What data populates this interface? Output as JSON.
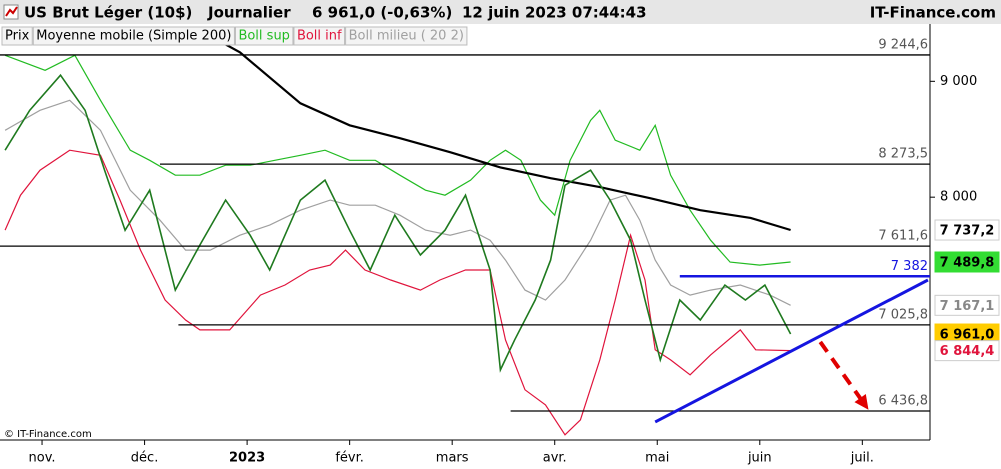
{
  "chart_data": {
    "type": "line",
    "title": "US Brut Léger (10$)",
    "period": "Journalier",
    "price_change": "6 961,0 (-0,63%)",
    "date_time": "12 juin 2023 07:44:43",
    "source": "IT-Finance.com",
    "copyright": "© IT-Finance.com",
    "log_scale": true,
    "ylim": [
      6250,
      9540
    ],
    "yticks": [
      {
        "value": 9000,
        "label": "9 000"
      },
      {
        "value": 8000,
        "label": "8 000"
      }
    ],
    "xlim": [
      -0.41,
      8.66
    ],
    "xticks": [
      {
        "value": 0,
        "label": "nov."
      },
      {
        "value": 1,
        "label": "déc."
      },
      {
        "value": 2,
        "label": "2023"
      },
      {
        "value": 3,
        "label": "févr."
      },
      {
        "value": 4,
        "label": "mars"
      },
      {
        "value": 5,
        "label": "avr."
      },
      {
        "value": 6,
        "label": "mai"
      },
      {
        "value": 7,
        "label": "juin"
      },
      {
        "value": 8,
        "label": "juil."
      }
    ],
    "series": [
      {
        "name": "Prix",
        "color": "#1f7a1f",
        "x": [
          -0.36,
          -0.12,
          0.18,
          0.42,
          0.61,
          0.81,
          1.05,
          1.3,
          1.54,
          1.79,
          2.03,
          2.22,
          2.52,
          2.76,
          3.0,
          3.2,
          3.44,
          3.69,
          3.93,
          4.13,
          4.37,
          4.47,
          4.61,
          4.81,
          4.96,
          5.1,
          5.35,
          5.54,
          5.74,
          5.88,
          6.03,
          6.22,
          6.42,
          6.66,
          6.86,
          7.05,
          7.3
        ],
        "values": [
          8391,
          8739,
          9056,
          8739,
          8222,
          7736,
          8057,
          7279,
          7620,
          7976,
          7696,
          7429,
          7976,
          8140,
          7736,
          7429,
          7855,
          7543,
          7736,
          8016,
          7429,
          6712,
          6920,
          7206,
          7504,
          8098,
          8222,
          7976,
          7658,
          7206,
          6780,
          7206,
          7061,
          7316,
          7206,
          7316,
          6961
        ]
      },
      {
        "name": "Moyenne mobile (Simple 200)",
        "color": "#000000",
        "x": [
          1.54,
          1.93,
          2.52,
          3.0,
          3.49,
          3.98,
          4.47,
          4.96,
          5.44,
          5.93,
          6.42,
          6.91,
          7.3
        ],
        "values": [
          9478,
          9269,
          8801,
          8606,
          8494,
          8374,
          8246,
          8156,
          8082,
          7992,
          7895,
          7833,
          7737.2
        ]
      },
      {
        "name": "Boll sup",
        "color": "#22bb22",
        "x": [
          -0.36,
          0.03,
          0.32,
          0.57,
          0.86,
          1.05,
          1.3,
          1.54,
          1.79,
          2.03,
          2.27,
          2.52,
          2.76,
          3.0,
          3.25,
          3.49,
          3.74,
          3.93,
          4.18,
          4.37,
          4.52,
          4.67,
          4.86,
          5.0,
          5.15,
          5.35,
          5.44,
          5.59,
          5.83,
          5.98,
          6.13,
          6.32,
          6.52,
          6.71,
          7.0,
          7.3
        ],
        "values": [
          9241,
          9101,
          9241,
          8828,
          8391,
          8306,
          8181,
          8181,
          8264,
          8264,
          8306,
          8348,
          8391,
          8306,
          8306,
          8181,
          8057,
          8016,
          8139,
          8306,
          8391,
          8306,
          7976,
          7855,
          8306,
          8650,
          8739,
          8477,
          8391,
          8606,
          8181,
          7895,
          7658,
          7489,
          7466,
          7489.8
        ]
      },
      {
        "name": "Boll inf",
        "color": "#e0143c",
        "x": [
          -0.36,
          -0.21,
          -0.02,
          0.27,
          0.57,
          0.76,
          0.96,
          1.2,
          1.4,
          1.54,
          1.83,
          2.13,
          2.37,
          2.61,
          2.81,
          2.96,
          3.15,
          3.4,
          3.69,
          3.88,
          4.13,
          4.37,
          4.52,
          4.71,
          4.91,
          5.1,
          5.25,
          5.44,
          5.59,
          5.74,
          5.88,
          5.98,
          6.13,
          6.32,
          6.52,
          6.81,
          6.96,
          7.3
        ],
        "values": [
          7737,
          8016,
          8222,
          8391,
          8348,
          7976,
          7581,
          7206,
          7061,
          6990,
          6990,
          7242,
          7317,
          7429,
          7466,
          7581,
          7429,
          7354,
          7279,
          7354,
          7429,
          7429,
          6919,
          6577,
          6477,
          6283,
          6379,
          6780,
          7206,
          7697,
          7354,
          6850,
          6780,
          6678,
          6815,
          6990,
          6850,
          6844.4
        ]
      },
      {
        "name": "Boll milieu ( 20 2)",
        "color": "#a0a0a0",
        "x": [
          -0.36,
          -0.02,
          0.27,
          0.57,
          0.86,
          1.15,
          1.4,
          1.64,
          1.93,
          2.22,
          2.52,
          2.81,
          3.0,
          3.25,
          3.49,
          3.74,
          3.98,
          4.18,
          4.37,
          4.52,
          4.71,
          4.91,
          5.1,
          5.35,
          5.54,
          5.69,
          5.83,
          5.98,
          6.13,
          6.32,
          6.52,
          6.81,
          7.1,
          7.3
        ],
        "values": [
          8563,
          8739,
          8828,
          8563,
          8057,
          7815,
          7581,
          7581,
          7697,
          7776,
          7895,
          7976,
          7935,
          7935,
          7855,
          7737,
          7697,
          7737,
          7658,
          7504,
          7279,
          7206,
          7354,
          7658,
          7976,
          8016,
          7815,
          7504,
          7317,
          7242,
          7279,
          7317,
          7242,
          7167.1
        ]
      }
    ],
    "levels": [
      {
        "value": 9244.6,
        "label": "9 244,6",
        "x_start": -0.41,
        "color": "#000000"
      },
      {
        "value": 8273.5,
        "label": "8 273,5",
        "x_start": 1.15,
        "color": "#000000"
      },
      {
        "value": 7611.6,
        "label": "7 611,6",
        "x_start": -0.41,
        "color": "#000000"
      },
      {
        "value": 7382,
        "label": "7 382",
        "x_start": 6.22,
        "color": "#1515e0"
      },
      {
        "value": 7025.8,
        "label": "7 025,8",
        "x_start": 1.33,
        "color": "#000000"
      },
      {
        "value": 6436.8,
        "label": "6 436,8",
        "x_start": 4.57,
        "color": "#000000"
      }
    ],
    "trendline": {
      "x": [
        5.98,
        8.64
      ],
      "values": [
        6366,
        7354
      ],
      "color": "#1515e0"
    },
    "arrow": {
      "x": [
        7.59,
        8.06
      ],
      "values": [
        6905,
        6445
      ],
      "color": "#e00000"
    },
    "last_values": [
      {
        "value": 7737.2,
        "label": "7 737,2",
        "color": "#000000",
        "background": "#ffffff"
      },
      {
        "value": 7489.8,
        "label": "7 489,8",
        "color": "#000000",
        "background": "#33dd33"
      },
      {
        "value": 7167.1,
        "label": "7 167,1",
        "color": "#888888",
        "background": "#ffffff"
      },
      {
        "value": 6961.0,
        "label": "6 961,0",
        "color": "#000000",
        "background": "#ffcc00"
      },
      {
        "value": 6844.4,
        "label": "6 844,4",
        "color": "#e0143c",
        "background": "#ffffff"
      }
    ]
  }
}
